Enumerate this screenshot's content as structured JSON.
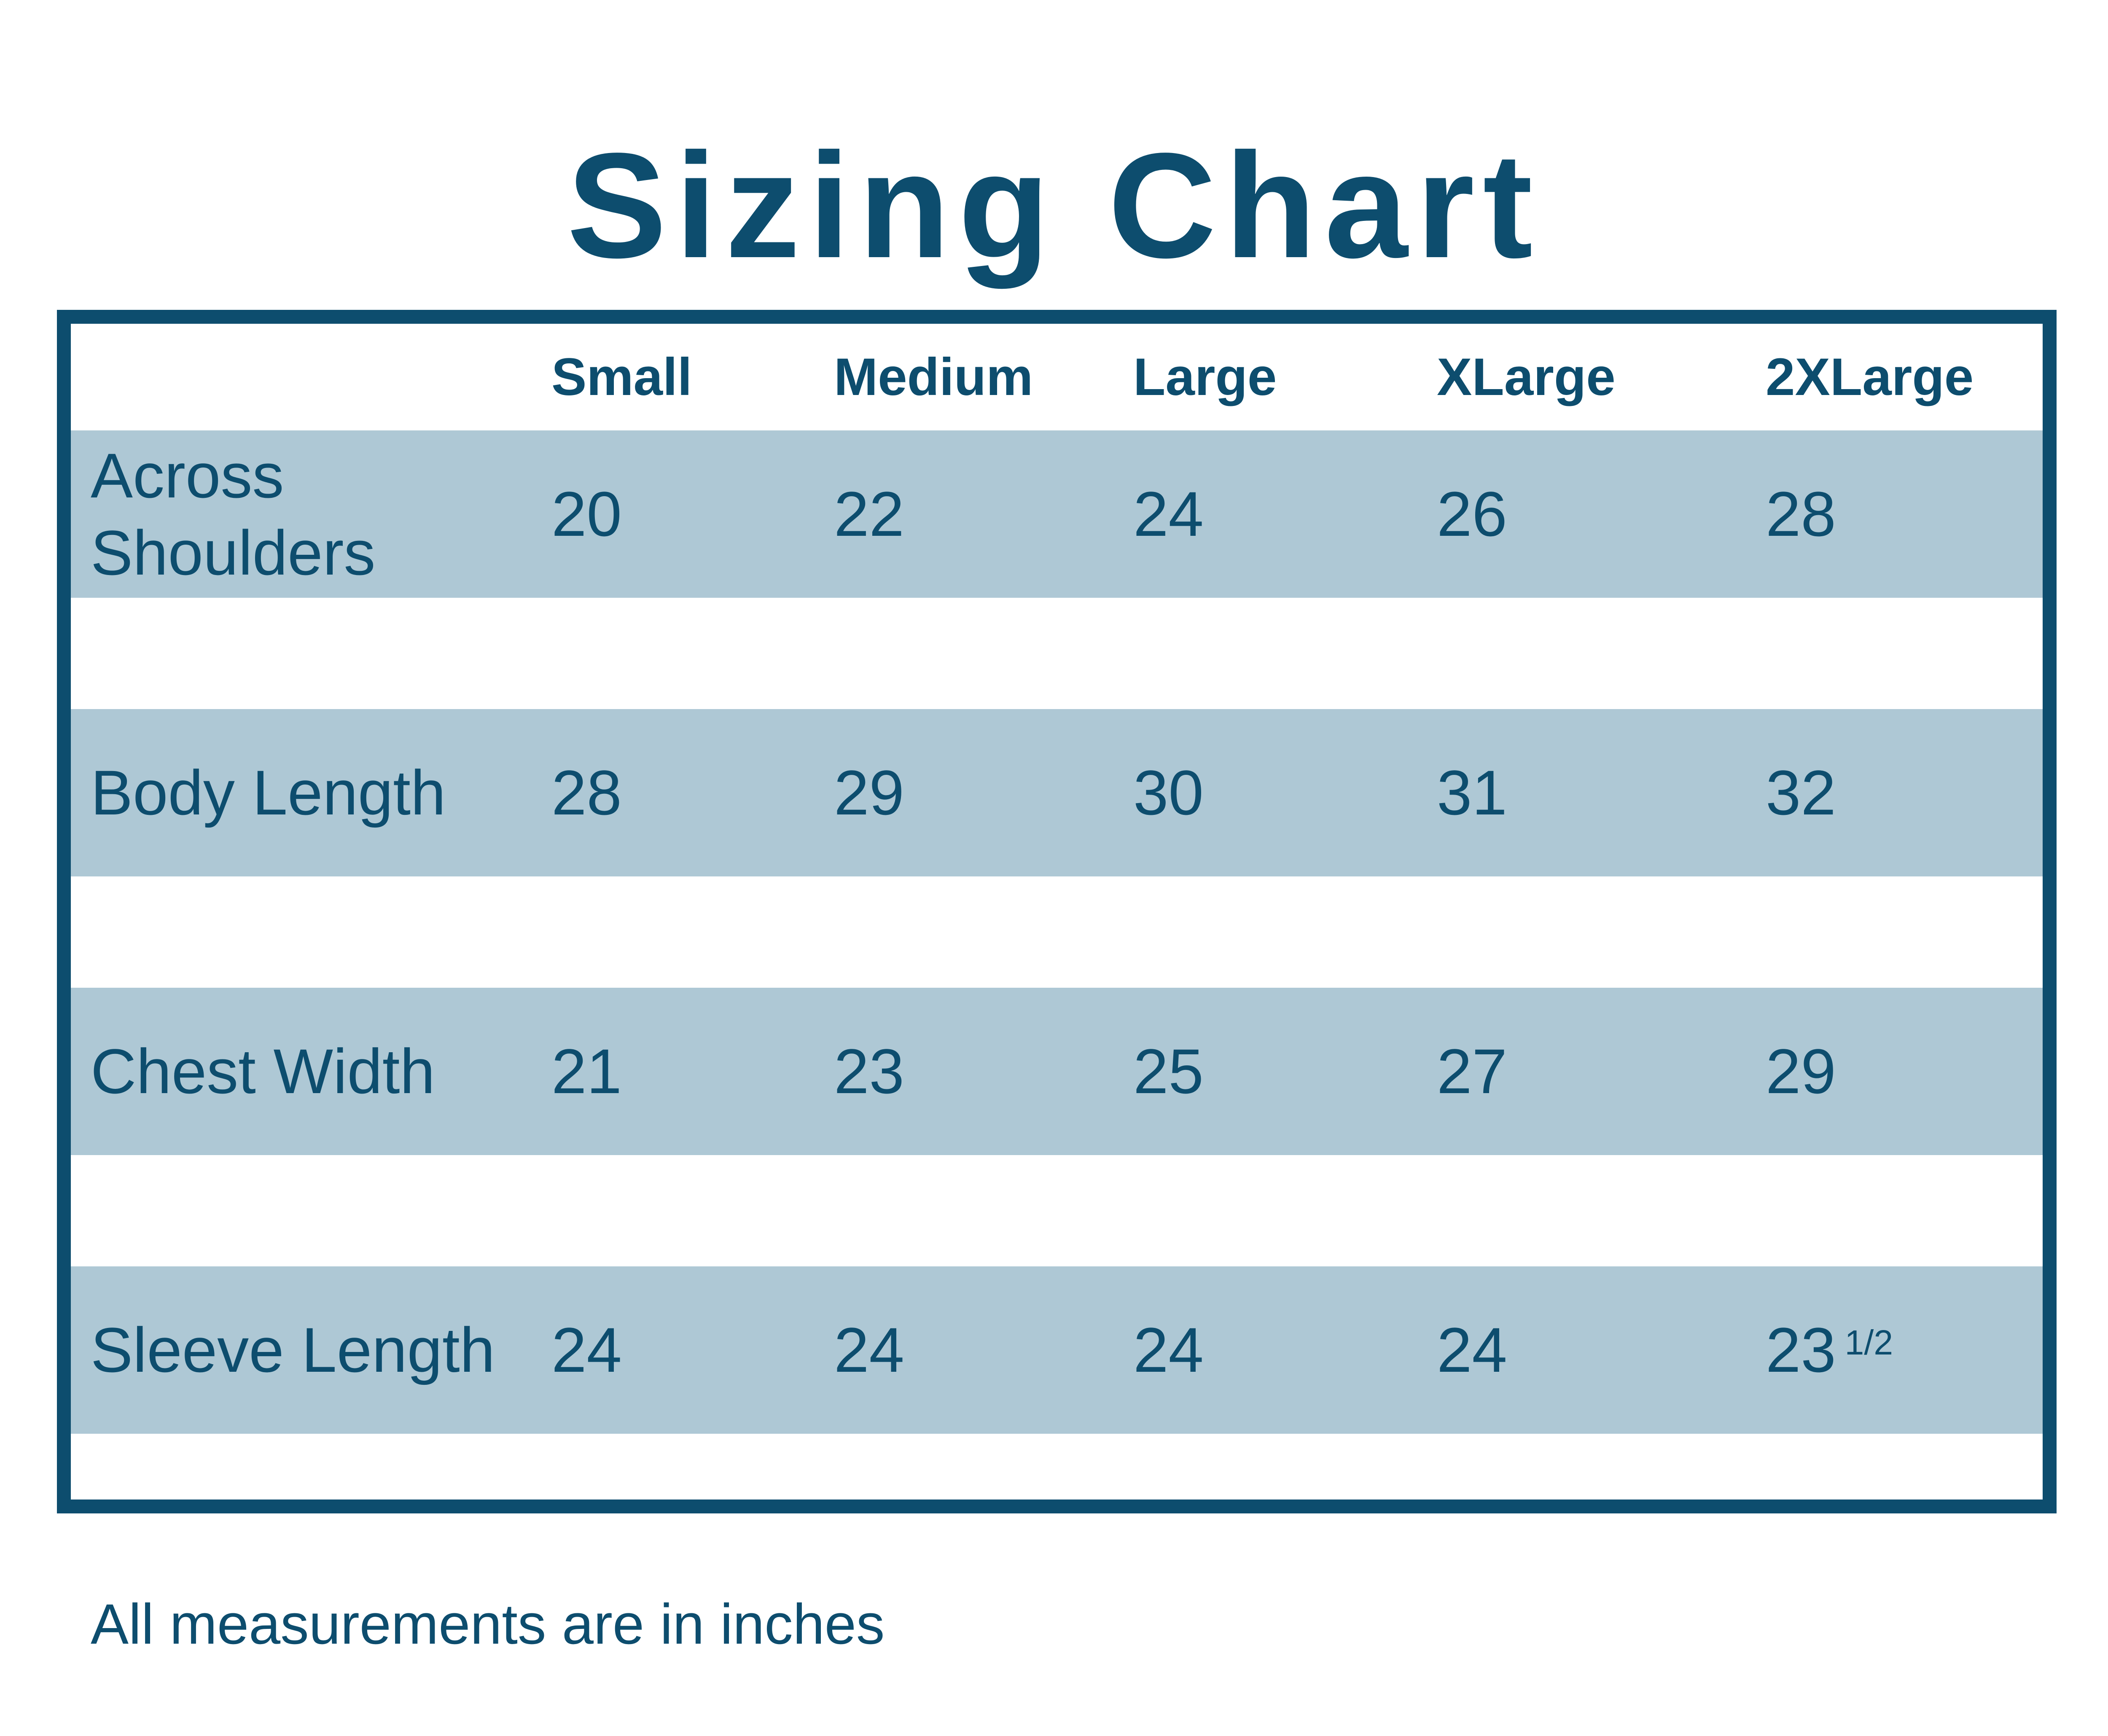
{
  "title": "Sizing Chart",
  "table": {
    "columns": [
      "Small",
      "Medium",
      "Large",
      "XLarge",
      "2XLarge"
    ],
    "rows": [
      {
        "label": "Across Shoulders",
        "values": [
          "20",
          "22",
          "24",
          "26",
          "28"
        ]
      },
      {
        "label": "Body Length",
        "values": [
          "28",
          "29",
          "30",
          "31",
          "32"
        ]
      },
      {
        "label": "Chest Width",
        "values": [
          "21",
          "23",
          "25",
          "27",
          "29"
        ]
      },
      {
        "label": "Sleeve Length",
        "values": [
          "24",
          "24",
          "24",
          "24",
          {
            "base": "23",
            "sup": "1/2"
          }
        ]
      }
    ]
  },
  "footer_note": "All measurements are in inches",
  "colors": {
    "navy": "#0d4d6e",
    "band_blue": "#aec8d5",
    "white": "#ffffff"
  },
  "chart_data": {
    "type": "table",
    "title": "Sizing Chart",
    "columns": [
      "Small",
      "Medium",
      "Large",
      "XLarge",
      "2XLarge"
    ],
    "row_labels": [
      "Across Shoulders",
      "Body Length",
      "Chest Width",
      "Sleeve Length"
    ],
    "series": [
      {
        "name": "Across Shoulders",
        "values": [
          20,
          22,
          24,
          26,
          28
        ]
      },
      {
        "name": "Body Length",
        "values": [
          28,
          29,
          30,
          31,
          32
        ]
      },
      {
        "name": "Chest Width",
        "values": [
          21,
          23,
          25,
          27,
          29
        ]
      },
      {
        "name": "Sleeve Length",
        "values": [
          24,
          24,
          24,
          24,
          23.5
        ]
      }
    ],
    "units": "inches",
    "note": "All measurements are in inches"
  }
}
